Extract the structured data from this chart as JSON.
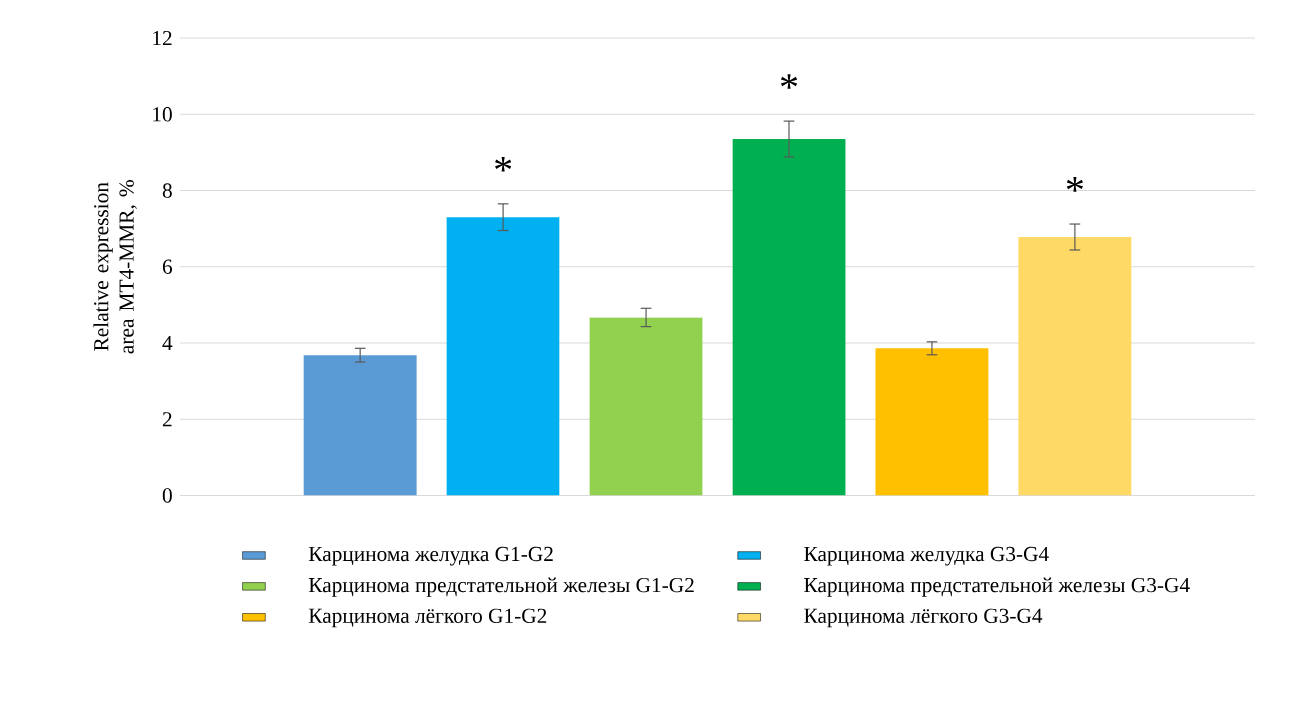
{
  "chart_data": {
    "type": "bar",
    "ylabel": "Relative expression area MT4-MMR, %",
    "categories": [
      null,
      null,
      null,
      null,
      null,
      null
    ],
    "series": [
      {
        "name": "Карцинома желудка G1-G2",
        "color": "#5b9bd5",
        "values": [
          3.68,
          null,
          null,
          null,
          null,
          null
        ],
        "errors": [
          0.18,
          null,
          null,
          null,
          null,
          null
        ]
      },
      {
        "name": "Карцинома желудка G3-G4",
        "color": "#00b0f0",
        "values": [
          null,
          7.3,
          null,
          null,
          null,
          null
        ],
        "errors": [
          null,
          0.35,
          null,
          null,
          null,
          null
        ]
      },
      {
        "name": "Карцинома предстательной железы G1-G2",
        "color": "#92d050",
        "values": [
          null,
          null,
          4.67,
          null,
          null,
          null
        ],
        "errors": [
          null,
          null,
          0.24,
          null,
          null,
          null
        ]
      },
      {
        "name": "Карцинома предстательной железы G3-G4",
        "color": "#00b050",
        "values": [
          null,
          null,
          null,
          9.35,
          null,
          null
        ],
        "errors": [
          null,
          null,
          null,
          0.47,
          null,
          null
        ]
      },
      {
        "name": "Карцинома лёгкого G1-G2",
        "color": "#ffc000",
        "values": [
          null,
          null,
          null,
          null,
          3.86,
          null
        ],
        "errors": [
          null,
          null,
          null,
          null,
          0.17,
          null
        ]
      },
      {
        "name": "Карцинома лёгкого G3-G4",
        "color": "#ffd966",
        "values": [
          null,
          null,
          null,
          null,
          null,
          6.78
        ],
        "errors": [
          null,
          null,
          null,
          null,
          null,
          0.34
        ]
      }
    ],
    "ylim": [
      0,
      12
    ],
    "yticks": [
      0,
      2,
      4,
      6,
      8,
      10,
      12
    ],
    "grid": "y",
    "legend": "bottom",
    "tick_labels": "y",
    "annotations": [
      "*",
      "*",
      "*"
    ]
  }
}
